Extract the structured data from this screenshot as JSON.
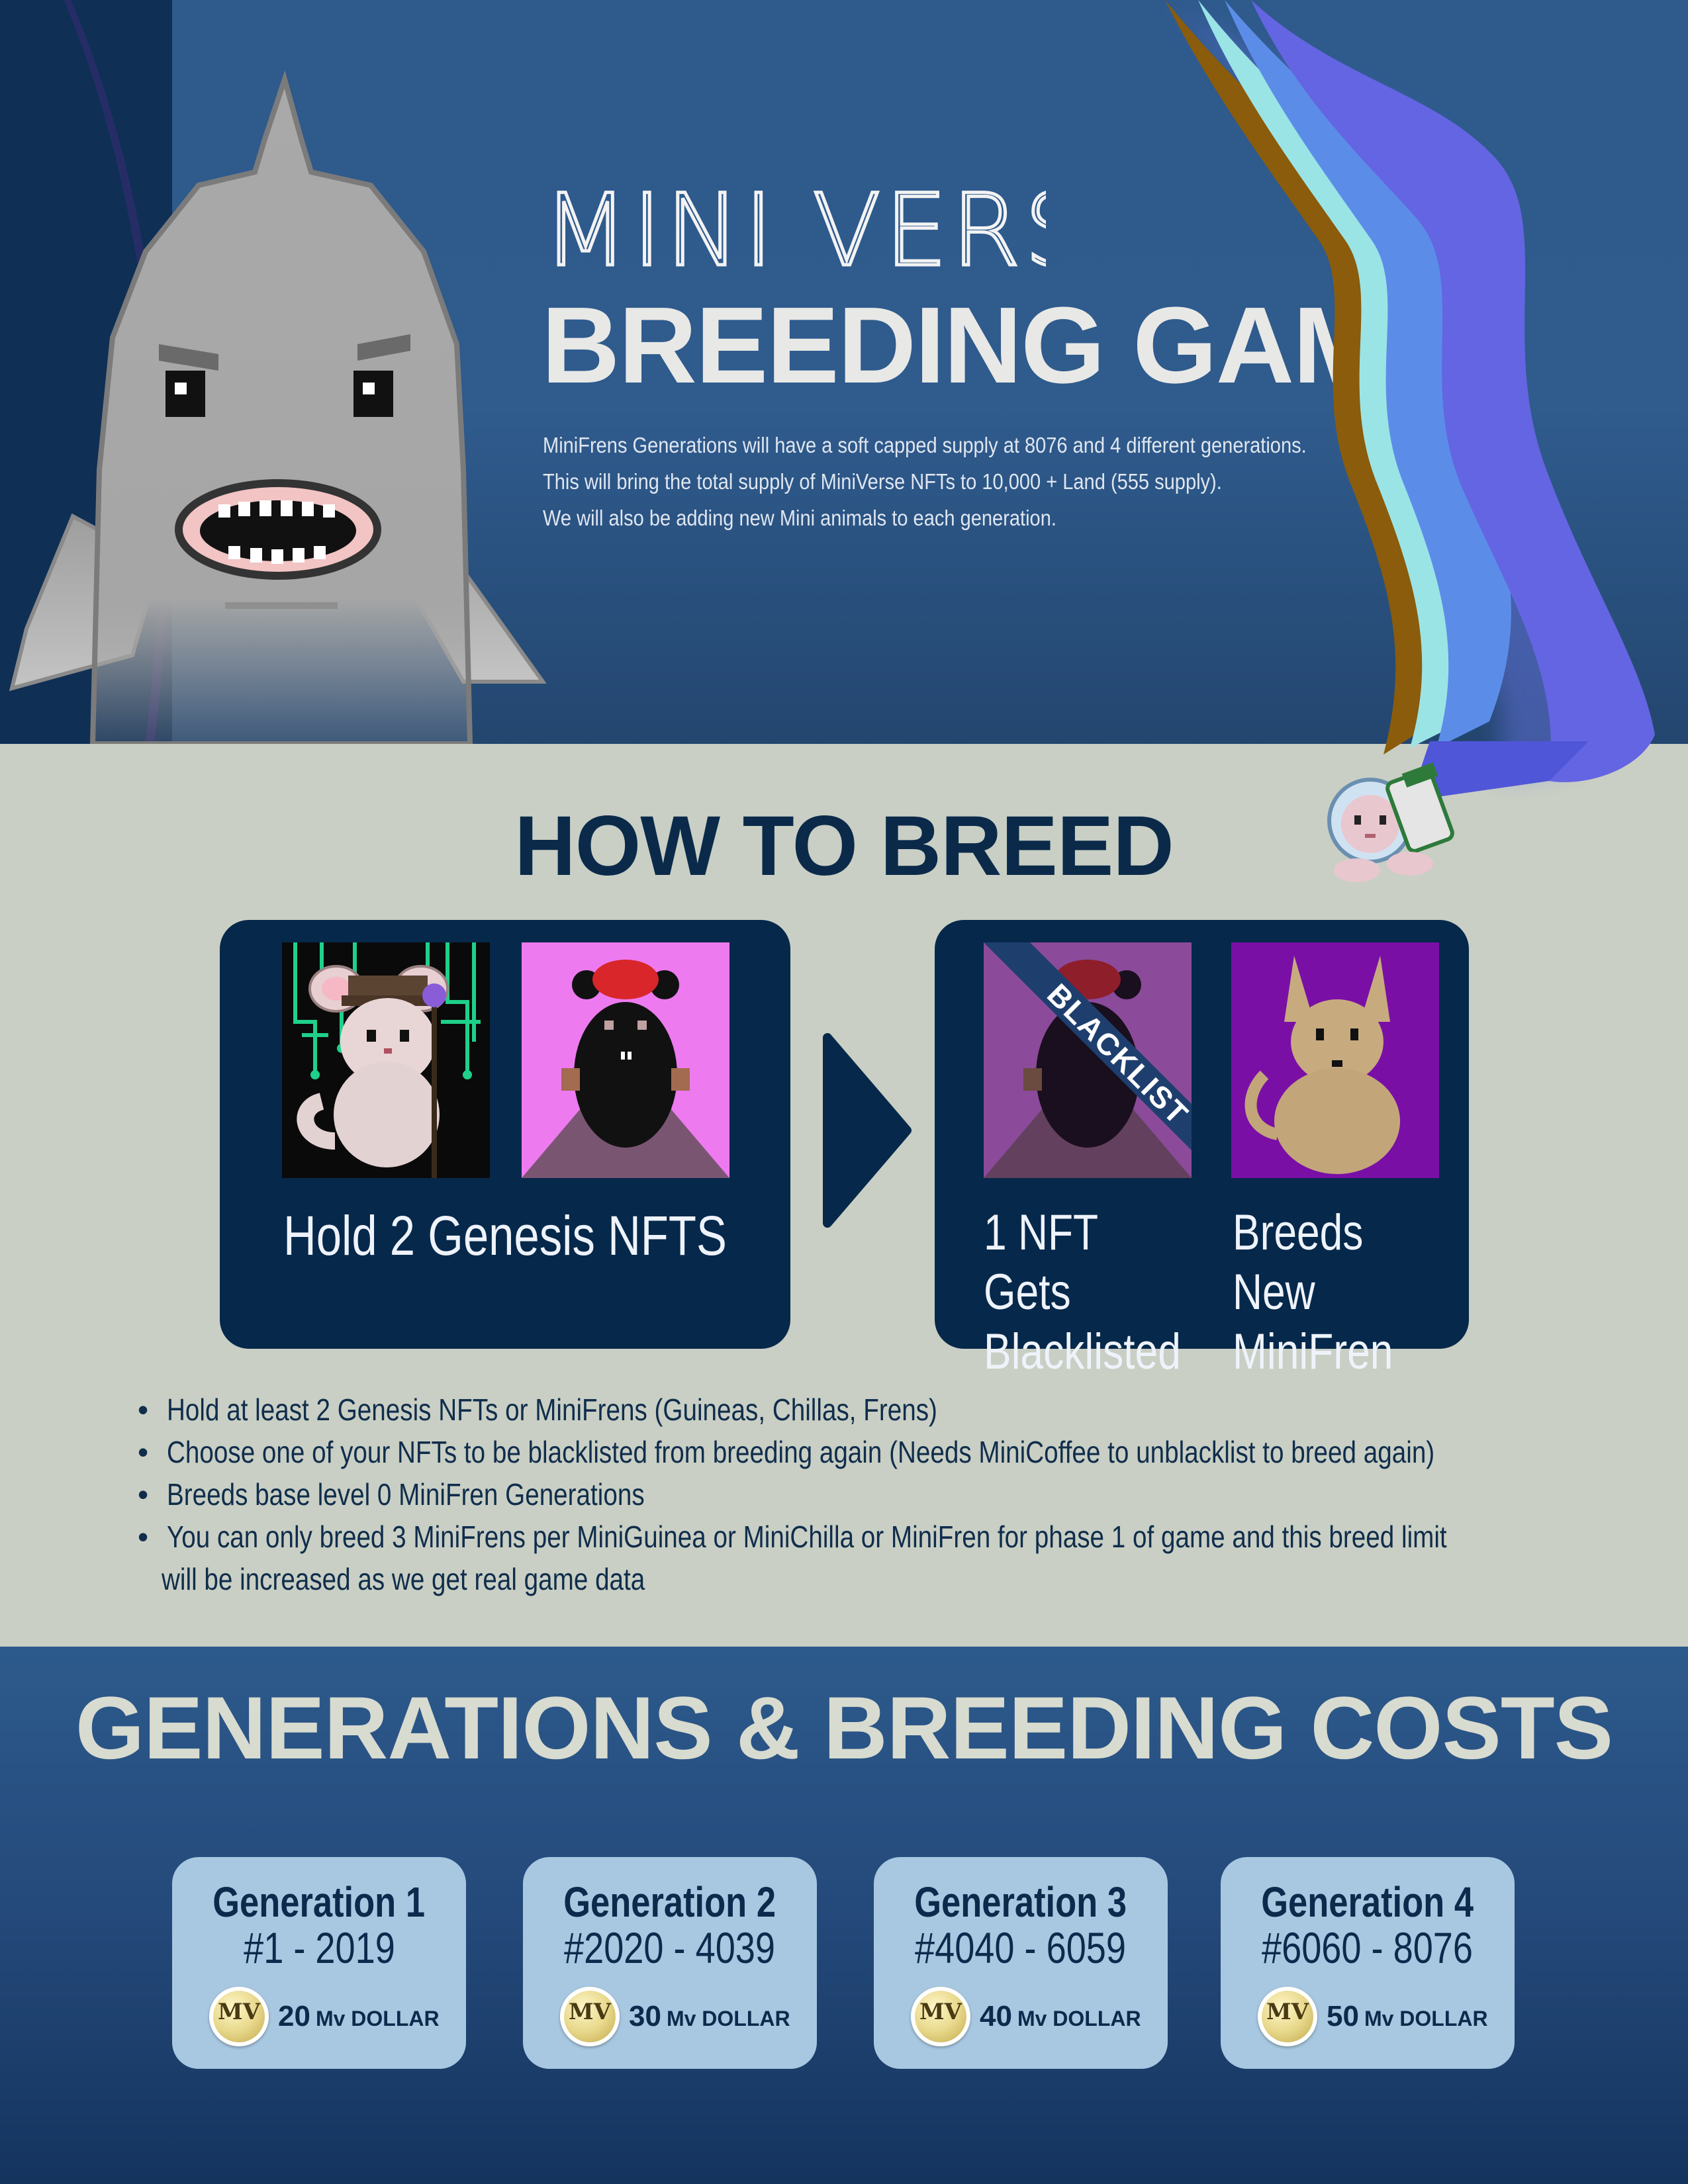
{
  "hero": {
    "brand": "MINI VERSE",
    "title": "BREEDING GAME",
    "intro": [
      "MiniFrens Generations will have a soft capped supply at 8076 and 4 different generations.",
      "This will bring the total supply of MiniVerse NFTs to 10,000 + Land (555 supply).",
      "We will also be adding new Mini animals to each generation."
    ]
  },
  "how_to": {
    "title": "HOW TO BREED",
    "left_label": "Hold 2 Genesis NFTS",
    "blacklist_tag": "BLACKLIST",
    "blacklisted_label": "1 NFT Gets Blacklisted",
    "new_label": "Breeds New MiniFren",
    "bullets": [
      "Hold at least 2 Genesis NFTs or MiniFrens (Guineas, Chillas, Frens)",
      "Choose one of your NFTs to be blacklisted from breeding again (Needs MiniCoffee to unblacklist to breed again)",
      "Breeds base level 0 MiniFren Generations",
      "You can only breed 3 MiniFrens per MiniGuinea or MiniChilla or MiniFren for phase 1 of game and this breed limit",
      "will be increased as we get real game data"
    ]
  },
  "generations": {
    "title": "GENERATIONS & BREEDING COSTS",
    "coin_mark": "MV",
    "cost_unit": "Mv DOLLAR",
    "items": [
      {
        "name": "Generation 1",
        "range": "#1 - 2019",
        "cost": "20"
      },
      {
        "name": "Generation 2",
        "range": "#2020 - 4039",
        "cost": "30"
      },
      {
        "name": "Generation 3",
        "range": "#4040 - 6059",
        "cost": "40"
      },
      {
        "name": "Generation 4",
        "range": "#6060 - 8076",
        "cost": "50"
      }
    ]
  },
  "colors": {
    "navy": "#06284a",
    "hero_blue": "#2e5a8c",
    "sage": "#c9cfc4",
    "card_blue": "#a8c8e2"
  }
}
